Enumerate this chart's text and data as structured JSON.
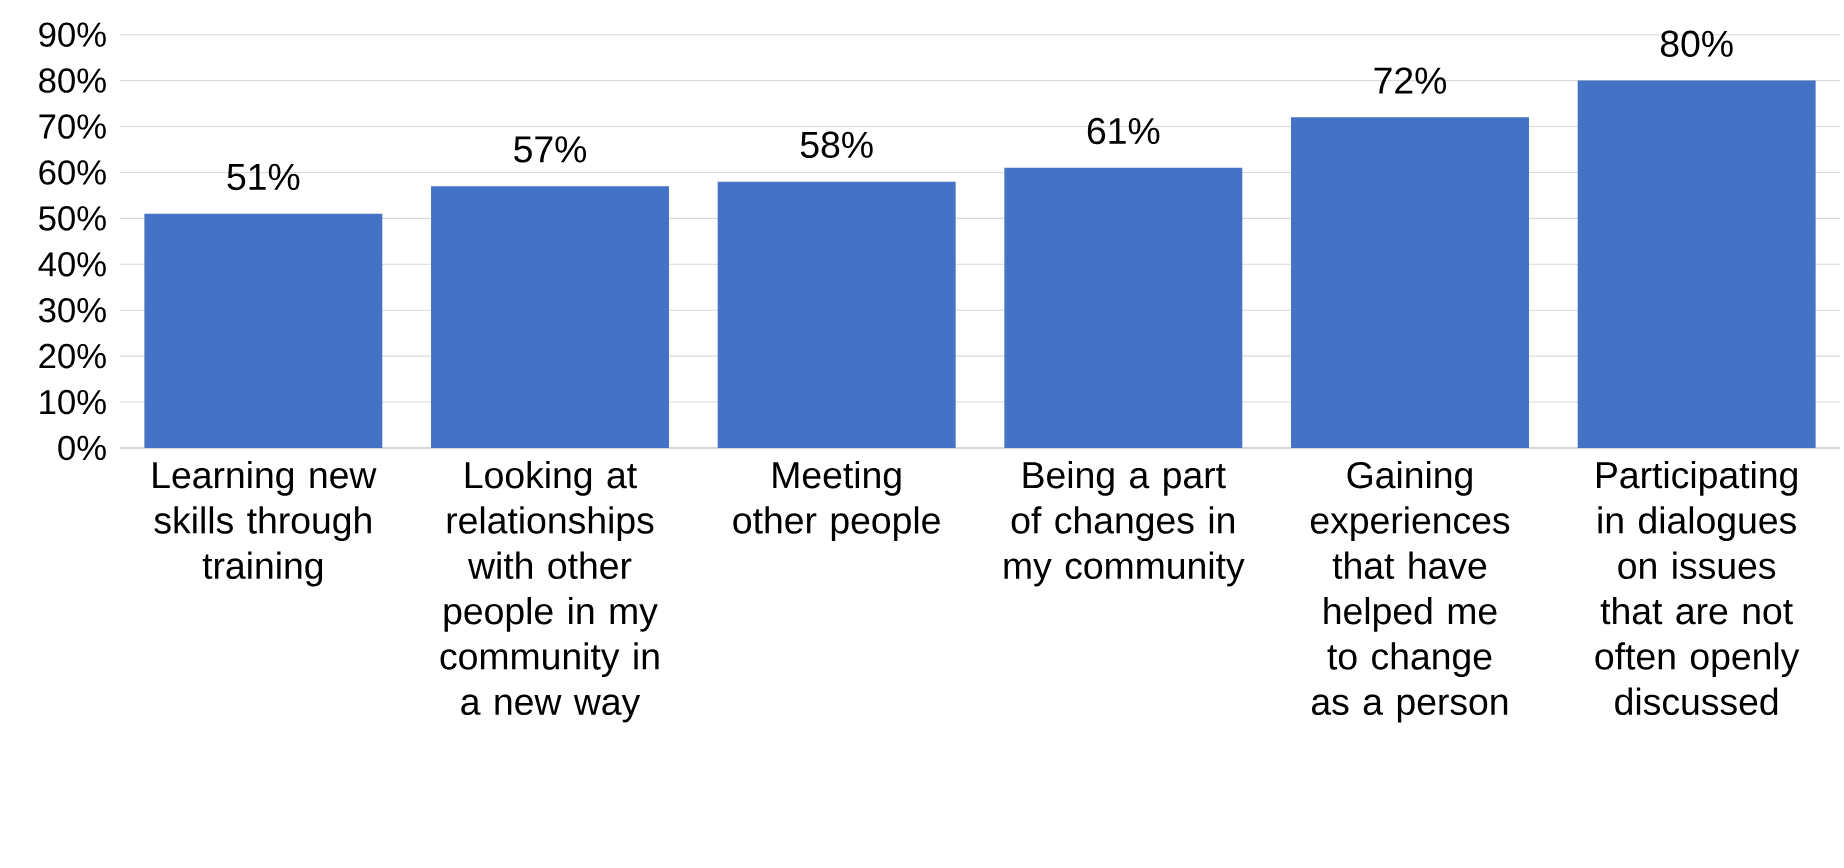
{
  "chart_data": {
    "type": "bar",
    "categories": [
      "Learning new skills through training",
      "Looking at relationships with other people in my community in a new way",
      "Meeting other people",
      "Being a part of changes in my community",
      "Gaining experiences that have helped me to change as a person",
      "Participating in dialogues on issues that are not often openly discussed"
    ],
    "values": [
      51,
      57,
      58,
      61,
      72,
      80
    ],
    "value_labels": [
      "51%",
      "57%",
      "58%",
      "61%",
      "72%",
      "80%"
    ],
    "color": "#4472c4",
    "ylim": [
      0,
      90
    ],
    "yticks": [
      {
        "value": 0,
        "label": "0%"
      },
      {
        "value": 10,
        "label": "10%"
      },
      {
        "value": 20,
        "label": "20%"
      },
      {
        "value": 30,
        "label": "30%"
      },
      {
        "value": 40,
        "label": "40%"
      },
      {
        "value": 50,
        "label": "50%"
      },
      {
        "value": 60,
        "label": "60%"
      },
      {
        "value": 70,
        "label": "70%"
      },
      {
        "value": 80,
        "label": "80%"
      },
      {
        "value": 90,
        "label": "90%"
      }
    ],
    "grid": "y"
  }
}
